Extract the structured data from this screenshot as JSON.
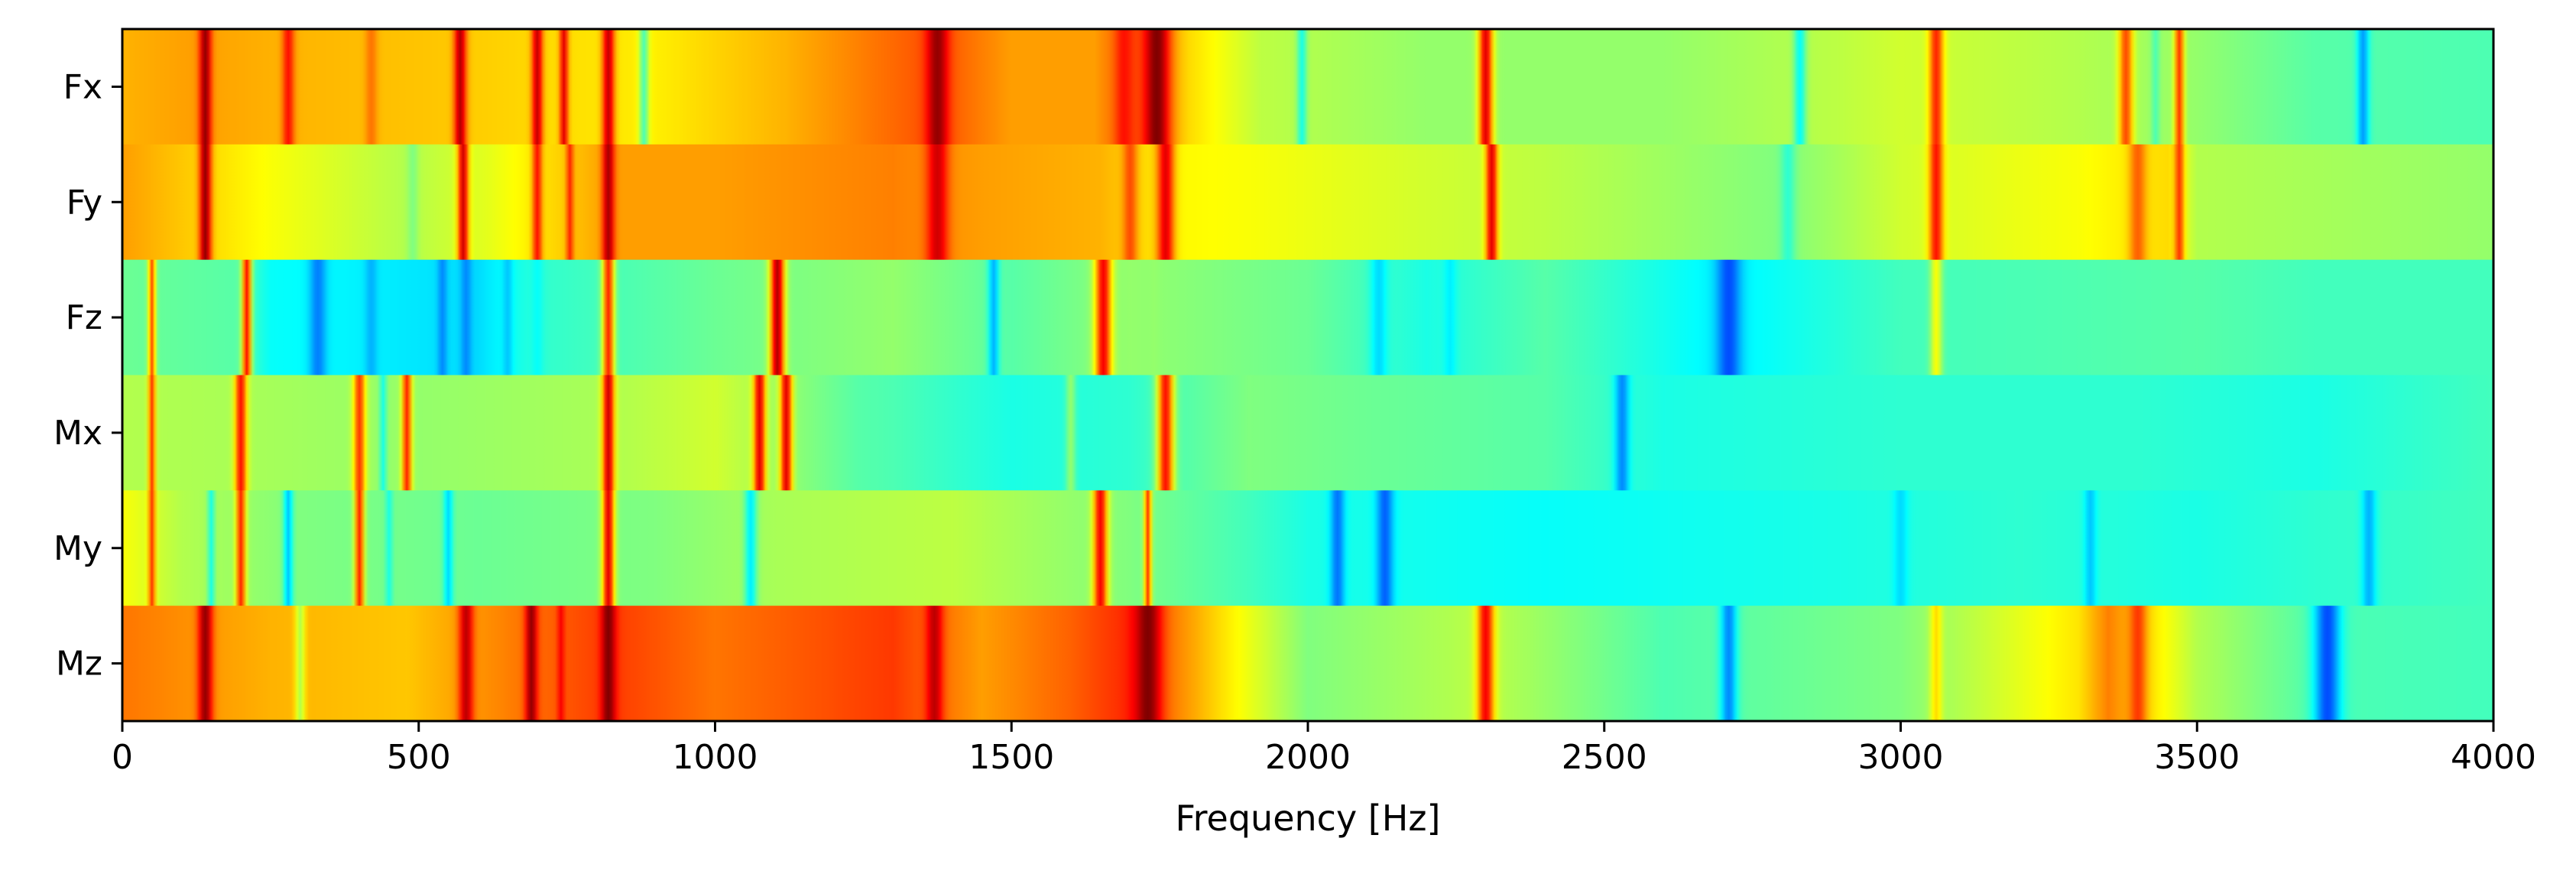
{
  "chart_data": {
    "type": "heatmap",
    "title": "",
    "xlabel": "Frequency [Hz]",
    "ylabel": "",
    "xlim": [
      0,
      4000
    ],
    "x_ticks": [
      0,
      500,
      1000,
      1500,
      2000,
      2500,
      3000,
      3500,
      4000
    ],
    "x_tick_labels": [
      "0",
      "500",
      "1000",
      "1500",
      "2000",
      "2500",
      "3000",
      "3500",
      "4000"
    ],
    "rows": [
      "Fx",
      "Fy",
      "Fz",
      "Mx",
      "My",
      "Mz"
    ],
    "value_range": [
      0,
      1
    ],
    "colormap": "jet",
    "grid": false,
    "legend": "none",
    "series": [
      {
        "label": "Fx",
        "baseline": [
          [
            0,
            0.7
          ],
          [
            120,
            0.72
          ],
          [
            260,
            0.7
          ],
          [
            540,
            0.68
          ],
          [
            900,
            0.64
          ],
          [
            1120,
            0.7
          ],
          [
            1370,
            0.8
          ],
          [
            1500,
            0.72
          ],
          [
            1640,
            0.72
          ],
          [
            1700,
            0.8
          ],
          [
            1800,
            0.66
          ],
          [
            1920,
            0.56
          ],
          [
            2200,
            0.52
          ],
          [
            2600,
            0.52
          ],
          [
            2900,
            0.56
          ],
          [
            3000,
            0.58
          ],
          [
            3300,
            0.55
          ],
          [
            3500,
            0.52
          ],
          [
            3700,
            0.46
          ],
          [
            4000,
            0.45
          ]
        ],
        "peaks": [
          [
            140,
            0.98,
            10
          ],
          [
            280,
            0.86,
            10
          ],
          [
            420,
            0.76,
            10
          ],
          [
            570,
            0.95,
            10
          ],
          [
            700,
            0.93,
            9
          ],
          [
            745,
            0.9,
            7
          ],
          [
            820,
            0.93,
            10
          ],
          [
            880,
            0.45,
            8
          ],
          [
            1375,
            0.98,
            18
          ],
          [
            1690,
            0.86,
            14
          ],
          [
            1745,
            1.0,
            22
          ],
          [
            1990,
            0.4,
            8
          ],
          [
            2300,
            0.9,
            12
          ],
          [
            2830,
            0.38,
            10
          ],
          [
            3060,
            0.84,
            12
          ],
          [
            3380,
            0.8,
            12
          ],
          [
            3430,
            0.45,
            7
          ],
          [
            3470,
            0.82,
            8
          ],
          [
            3780,
            0.28,
            10
          ]
        ]
      },
      {
        "label": "Fy",
        "baseline": [
          [
            0,
            0.72
          ],
          [
            250,
            0.62
          ],
          [
            480,
            0.55
          ],
          [
            620,
            0.6
          ],
          [
            820,
            0.72
          ],
          [
            1000,
            0.72
          ],
          [
            1300,
            0.75
          ],
          [
            1450,
            0.72
          ],
          [
            1650,
            0.7
          ],
          [
            1780,
            0.63
          ],
          [
            1900,
            0.62
          ],
          [
            2200,
            0.58
          ],
          [
            2400,
            0.56
          ],
          [
            2800,
            0.5
          ],
          [
            3000,
            0.58
          ],
          [
            3300,
            0.62
          ],
          [
            3450,
            0.66
          ],
          [
            3500,
            0.55
          ],
          [
            4000,
            0.52
          ]
        ],
        "peaks": [
          [
            140,
            0.98,
            10
          ],
          [
            490,
            0.5,
            9
          ],
          [
            575,
            0.92,
            9
          ],
          [
            700,
            0.86,
            8
          ],
          [
            755,
            0.84,
            6
          ],
          [
            820,
            0.96,
            10
          ],
          [
            1375,
            0.92,
            18
          ],
          [
            1700,
            0.8,
            12
          ],
          [
            1760,
            0.9,
            14
          ],
          [
            2310,
            0.9,
            10
          ],
          [
            2810,
            0.42,
            12
          ],
          [
            3060,
            0.86,
            12
          ],
          [
            3400,
            0.78,
            14
          ],
          [
            3470,
            0.82,
            8
          ]
        ]
      },
      {
        "label": "Fz",
        "baseline": [
          [
            0,
            0.48
          ],
          [
            200,
            0.46
          ],
          [
            250,
            0.38
          ],
          [
            600,
            0.34
          ],
          [
            700,
            0.42
          ],
          [
            1000,
            0.48
          ],
          [
            1300,
            0.52
          ],
          [
            1500,
            0.46
          ],
          [
            1700,
            0.52
          ],
          [
            2000,
            0.48
          ],
          [
            2200,
            0.4
          ],
          [
            2400,
            0.46
          ],
          [
            2700,
            0.36
          ],
          [
            3000,
            0.44
          ],
          [
            3500,
            0.46
          ],
          [
            3700,
            0.44
          ],
          [
            4000,
            0.44
          ]
        ],
        "peaks": [
          [
            50,
            0.8,
            6
          ],
          [
            210,
            0.86,
            8
          ],
          [
            330,
            0.25,
            14
          ],
          [
            420,
            0.3,
            10
          ],
          [
            540,
            0.26,
            8
          ],
          [
            580,
            0.26,
            9
          ],
          [
            650,
            0.32,
            8
          ],
          [
            700,
            0.38,
            10
          ],
          [
            820,
            0.84,
            10
          ],
          [
            1105,
            0.95,
            12
          ],
          [
            1470,
            0.3,
            9
          ],
          [
            1655,
            0.88,
            14
          ],
          [
            1740,
            0.52,
            8
          ],
          [
            2120,
            0.34,
            14
          ],
          [
            2240,
            0.36,
            10
          ],
          [
            2710,
            0.2,
            20
          ],
          [
            3060,
            0.62,
            10
          ]
        ]
      },
      {
        "label": "Mx",
        "baseline": [
          [
            0,
            0.55
          ],
          [
            200,
            0.54
          ],
          [
            500,
            0.52
          ],
          [
            800,
            0.54
          ],
          [
            1000,
            0.58
          ],
          [
            1240,
            0.46
          ],
          [
            1300,
            0.45
          ],
          [
            1500,
            0.4
          ],
          [
            1700,
            0.42
          ],
          [
            1900,
            0.5
          ],
          [
            2100,
            0.48
          ],
          [
            2400,
            0.46
          ],
          [
            2600,
            0.4
          ],
          [
            3000,
            0.42
          ],
          [
            3400,
            0.42
          ],
          [
            3700,
            0.4
          ],
          [
            4000,
            0.44
          ]
        ],
        "peaks": [
          [
            50,
            0.82,
            6
          ],
          [
            200,
            0.86,
            10
          ],
          [
            400,
            0.82,
            10
          ],
          [
            440,
            0.4,
            6
          ],
          [
            480,
            0.84,
            8
          ],
          [
            820,
            0.92,
            10
          ],
          [
            1075,
            0.9,
            10
          ],
          [
            1120,
            0.9,
            10
          ],
          [
            1600,
            0.52,
            8
          ],
          [
            1760,
            0.86,
            14
          ],
          [
            2530,
            0.26,
            12
          ]
        ]
      },
      {
        "label": "My",
        "baseline": [
          [
            0,
            0.62
          ],
          [
            100,
            0.55
          ],
          [
            300,
            0.5
          ],
          [
            600,
            0.48
          ],
          [
            900,
            0.5
          ],
          [
            1100,
            0.54
          ],
          [
            1400,
            0.56
          ],
          [
            1700,
            0.5
          ],
          [
            1900,
            0.44
          ],
          [
            2000,
            0.4
          ],
          [
            2400,
            0.38
          ],
          [
            2900,
            0.4
          ],
          [
            3200,
            0.42
          ],
          [
            3500,
            0.4
          ],
          [
            3700,
            0.42
          ],
          [
            4000,
            0.44
          ]
        ],
        "peaks": [
          [
            50,
            0.82,
            6
          ],
          [
            150,
            0.4,
            6
          ],
          [
            200,
            0.84,
            8
          ],
          [
            280,
            0.32,
            8
          ],
          [
            400,
            0.84,
            8
          ],
          [
            450,
            0.4,
            6
          ],
          [
            550,
            0.34,
            8
          ],
          [
            820,
            0.9,
            10
          ],
          [
            1060,
            0.36,
            10
          ],
          [
            1650,
            0.88,
            12
          ],
          [
            1730,
            0.82,
            6
          ],
          [
            2050,
            0.24,
            12
          ],
          [
            2130,
            0.22,
            14
          ],
          [
            3000,
            0.34,
            12
          ],
          [
            3320,
            0.32,
            10
          ],
          [
            3790,
            0.3,
            12
          ]
        ]
      },
      {
        "label": "Mz",
        "baseline": [
          [
            0,
            0.76
          ],
          [
            250,
            0.7
          ],
          [
            480,
            0.68
          ],
          [
            820,
            0.82
          ],
          [
            1000,
            0.76
          ],
          [
            1300,
            0.82
          ],
          [
            1450,
            0.72
          ],
          [
            1600,
            0.78
          ],
          [
            1700,
            0.84
          ],
          [
            1850,
            0.66
          ],
          [
            2000,
            0.5
          ],
          [
            2300,
            0.56
          ],
          [
            2600,
            0.45
          ],
          [
            3000,
            0.5
          ],
          [
            3300,
            0.65
          ],
          [
            3350,
            0.75
          ],
          [
            3500,
            0.55
          ],
          [
            3700,
            0.45
          ],
          [
            4000,
            0.44
          ]
        ],
        "peaks": [
          [
            140,
            0.98,
            12
          ],
          [
            300,
            0.55,
            8
          ],
          [
            580,
            0.94,
            12
          ],
          [
            690,
            0.98,
            10
          ],
          [
            740,
            0.88,
            6
          ],
          [
            820,
            1.0,
            12
          ],
          [
            1370,
            0.94,
            14
          ],
          [
            1730,
            1.0,
            22
          ],
          [
            2300,
            0.88,
            14
          ],
          [
            2710,
            0.26,
            14
          ],
          [
            3060,
            0.66,
            10
          ],
          [
            3400,
            0.82,
            14
          ],
          [
            3720,
            0.2,
            22
          ]
        ]
      }
    ]
  }
}
